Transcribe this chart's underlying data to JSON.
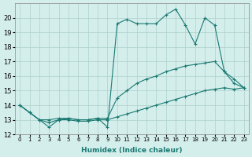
{
  "xlabel": "Humidex (Indice chaleur)",
  "ylabel": "",
  "bg_color": "#d4eeec",
  "grid_color": "#aed0cc",
  "line_color": "#1a7a72",
  "xlim": [
    -0.5,
    23.5
  ],
  "ylim": [
    12,
    21
  ],
  "xticks": [
    0,
    1,
    2,
    3,
    4,
    5,
    6,
    7,
    8,
    9,
    10,
    11,
    12,
    13,
    14,
    15,
    16,
    17,
    18,
    19,
    20,
    21,
    22,
    23
  ],
  "yticks": [
    12,
    13,
    14,
    15,
    16,
    17,
    18,
    19,
    20
  ],
  "series": [
    {
      "x": [
        0,
        1,
        2,
        3,
        4,
        5,
        6,
        7,
        8,
        9,
        10,
        11,
        12,
        13,
        14,
        15,
        16,
        17,
        18,
        19,
        20,
        21,
        22,
        23
      ],
      "y": [
        14.0,
        13.5,
        13.0,
        12.5,
        13.0,
        13.1,
        13.0,
        13.0,
        13.1,
        12.5,
        19.6,
        19.9,
        19.6,
        19.6,
        19.6,
        20.2,
        20.6,
        19.5,
        18.2,
        20.0,
        19.5,
        16.3,
        15.5,
        15.2
      ]
    },
    {
      "x": [
        0,
        1,
        2,
        3,
        4,
        5,
        6,
        7,
        8,
        9,
        10,
        11,
        12,
        13,
        14,
        15,
        16,
        17,
        18,
        19,
        20,
        21,
        22,
        23
      ],
      "y": [
        14.0,
        13.5,
        13.0,
        13.0,
        13.1,
        13.1,
        13.0,
        13.0,
        13.1,
        13.1,
        14.5,
        15.0,
        15.5,
        15.8,
        16.0,
        16.3,
        16.5,
        16.7,
        16.8,
        16.9,
        17.0,
        16.3,
        15.8,
        15.2
      ]
    },
    {
      "x": [
        0,
        1,
        2,
        3,
        4,
        5,
        6,
        7,
        8,
        9,
        10,
        11,
        12,
        13,
        14,
        15,
        16,
        17,
        18,
        19,
        20,
        21,
        22,
        23
      ],
      "y": [
        14.0,
        13.5,
        13.0,
        12.8,
        13.0,
        13.0,
        12.9,
        12.9,
        13.0,
        13.0,
        13.2,
        13.4,
        13.6,
        13.8,
        14.0,
        14.2,
        14.4,
        14.6,
        14.8,
        15.0,
        15.1,
        15.2,
        15.1,
        15.2
      ]
    }
  ]
}
